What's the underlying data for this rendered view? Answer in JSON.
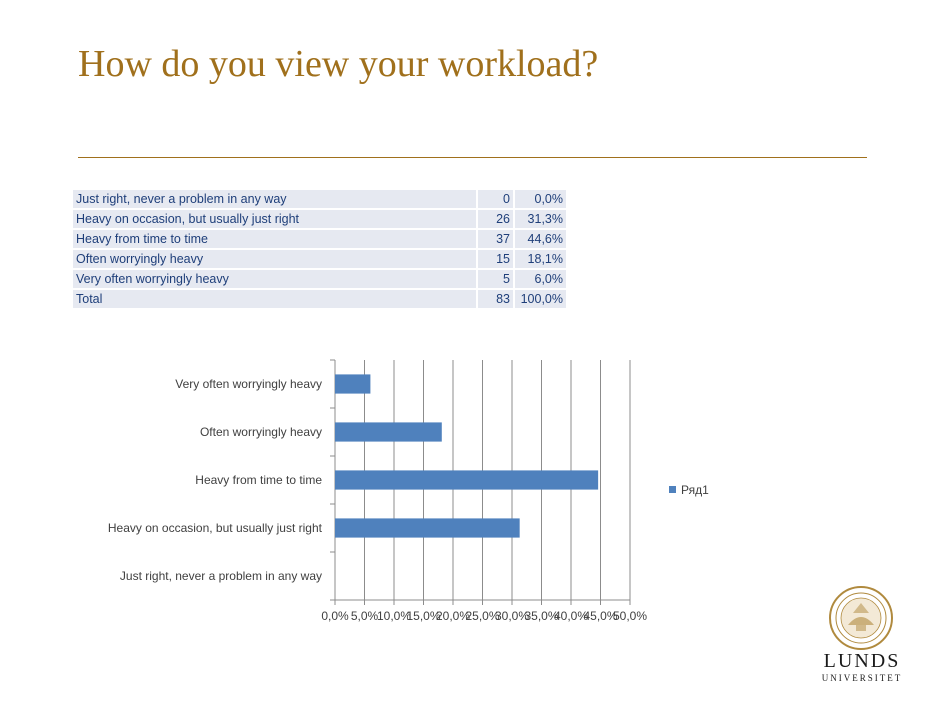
{
  "slide": {
    "title": "How do you view your workload?"
  },
  "table": {
    "rows": [
      {
        "label": "Just right, never a problem in any way",
        "count": "0",
        "pct": "0,0%"
      },
      {
        "label": "Heavy on occasion, but usually just right",
        "count": "26",
        "pct": "31,3%"
      },
      {
        "label": "Heavy from time to time",
        "count": "37",
        "pct": "44,6%"
      },
      {
        "label": "Often worryingly heavy",
        "count": "15",
        "pct": "18,1%"
      },
      {
        "label": "Very often worryingly heavy",
        "count": "5",
        "pct": "6,0%"
      },
      {
        "label": "Total",
        "count": "83",
        "pct": "100,0%"
      }
    ]
  },
  "chart_data": {
    "type": "bar",
    "orientation": "horizontal",
    "categories": [
      "Just right, never a problem in any way",
      "Heavy on occasion, but usually just right",
      "Heavy from time to time",
      "Often worryingly heavy",
      "Very often worryingly heavy"
    ],
    "series": [
      {
        "name": "Ряд1",
        "values": [
          0.0,
          31.3,
          44.6,
          18.1,
          6.0
        ],
        "color": "#4f81bd"
      }
    ],
    "xlim": [
      0,
      50
    ],
    "xticks": [
      "0,0%",
      "5,0%",
      "10,0%",
      "15,0%",
      "20,0%",
      "25,0%",
      "30,0%",
      "35,0%",
      "40,0%",
      "45,0%",
      "50,0%"
    ],
    "grid": "vertical",
    "legend": "right",
    "title": "",
    "xlabel": "",
    "ylabel": ""
  },
  "logo": {
    "word_large": "LUNDS",
    "word_small": "UNIVERSITET"
  },
  "colors": {
    "title": "#a0701c",
    "table_bg": "#e6e9f1",
    "table_text": "#1f3f7a",
    "bar": "#4f81bd"
  }
}
